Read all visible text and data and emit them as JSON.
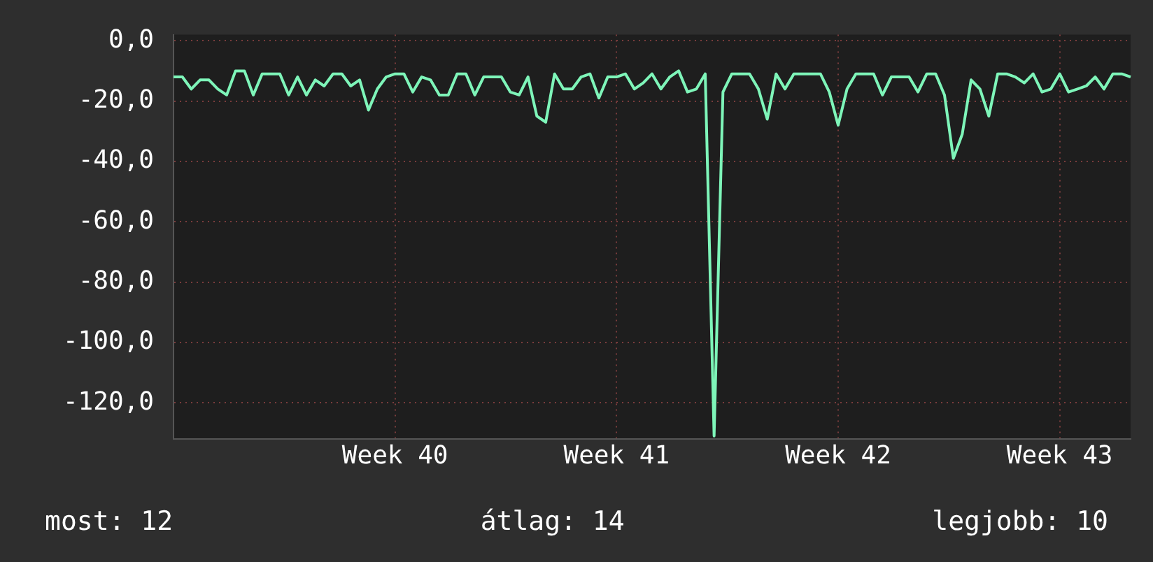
{
  "chart_data": {
    "type": "line",
    "color": "#7ef5b9",
    "grid": true,
    "categories": [
      null,
      null,
      null,
      null,
      null,
      null,
      null,
      null,
      null,
      null,
      null,
      null,
      null,
      null,
      null,
      null,
      null,
      null,
      null,
      null,
      null,
      null,
      null,
      null,
      null,
      "Week 40",
      null,
      null,
      null,
      null,
      null,
      null,
      null,
      null,
      null,
      null,
      null,
      null,
      null,
      null,
      null,
      null,
      null,
      null,
      null,
      null,
      null,
      null,
      null,
      null,
      "Week 41",
      null,
      null,
      null,
      null,
      null,
      null,
      null,
      null,
      null,
      null,
      null,
      null,
      null,
      null,
      null,
      null,
      null,
      null,
      null,
      null,
      null,
      null,
      null,
      null,
      "Week 42",
      null,
      null,
      null,
      null,
      null,
      null,
      null,
      null,
      null,
      null,
      null,
      null,
      null,
      null,
      null,
      null,
      null,
      null,
      null,
      null,
      null,
      null,
      null,
      null,
      "Week 43",
      null,
      null,
      null,
      null,
      null,
      null,
      null,
      null
    ],
    "ylim": [
      -132,
      2
    ],
    "yticks": [
      {
        "value": 0,
        "label": "0,0"
      },
      {
        "value": -20,
        "label": "-20,0"
      },
      {
        "value": -40,
        "label": "-40,0"
      },
      {
        "value": -60,
        "label": "-60,0"
      },
      {
        "value": -80,
        "label": "-80,0"
      },
      {
        "value": -100,
        "label": "-100,0"
      },
      {
        "value": -120,
        "label": "-120,0"
      }
    ],
    "values": [
      -12,
      -12,
      -16,
      -13,
      -13,
      -16,
      -18,
      -10,
      -10,
      -18,
      -11,
      -11,
      -11,
      -18,
      -12,
      -18,
      -13,
      -15,
      -11,
      -11,
      -15,
      -13,
      -23,
      -16,
      -12,
      -11,
      -11,
      -17,
      -12,
      -13,
      -18,
      -18,
      -11,
      -11,
      -18,
      -12,
      -12,
      -12,
      -17,
      -18,
      -12,
      -25,
      -27,
      -11,
      -16,
      -16,
      -12,
      -11,
      -19,
      -12,
      -12,
      -11,
      -16,
      -14,
      -11,
      -16,
      -12,
      -10,
      -17,
      -16,
      -11,
      -131,
      -17,
      -11,
      -11,
      -11,
      -16,
      -26,
      -11,
      -16,
      -11,
      -11,
      -11,
      -11,
      -17,
      -28,
      -16,
      -11,
      -11,
      -11,
      -18,
      -12,
      -12,
      -12,
      -17,
      -11,
      -11,
      -18,
      -39,
      -31,
      -13,
      -16,
      -25,
      -11,
      -11,
      -12,
      -14,
      -11,
      -17,
      -16,
      -11,
      -17,
      -16,
      -15,
      -12,
      -16,
      -11,
      -11,
      -12
    ],
    "annotations": [
      "most: 12",
      "átlag: 14",
      "legjobb: 10"
    ]
  }
}
